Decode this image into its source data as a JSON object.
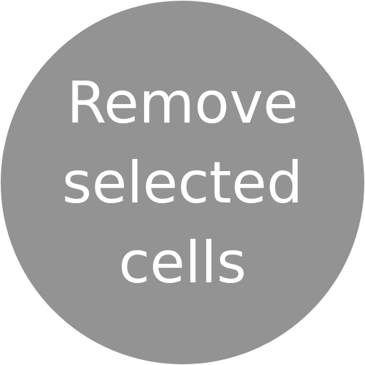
{
  "button": {
    "label_lines": [
      "Remove",
      "selected",
      "cells"
    ],
    "background_color": "#939393",
    "text_color": "#ffffff"
  }
}
